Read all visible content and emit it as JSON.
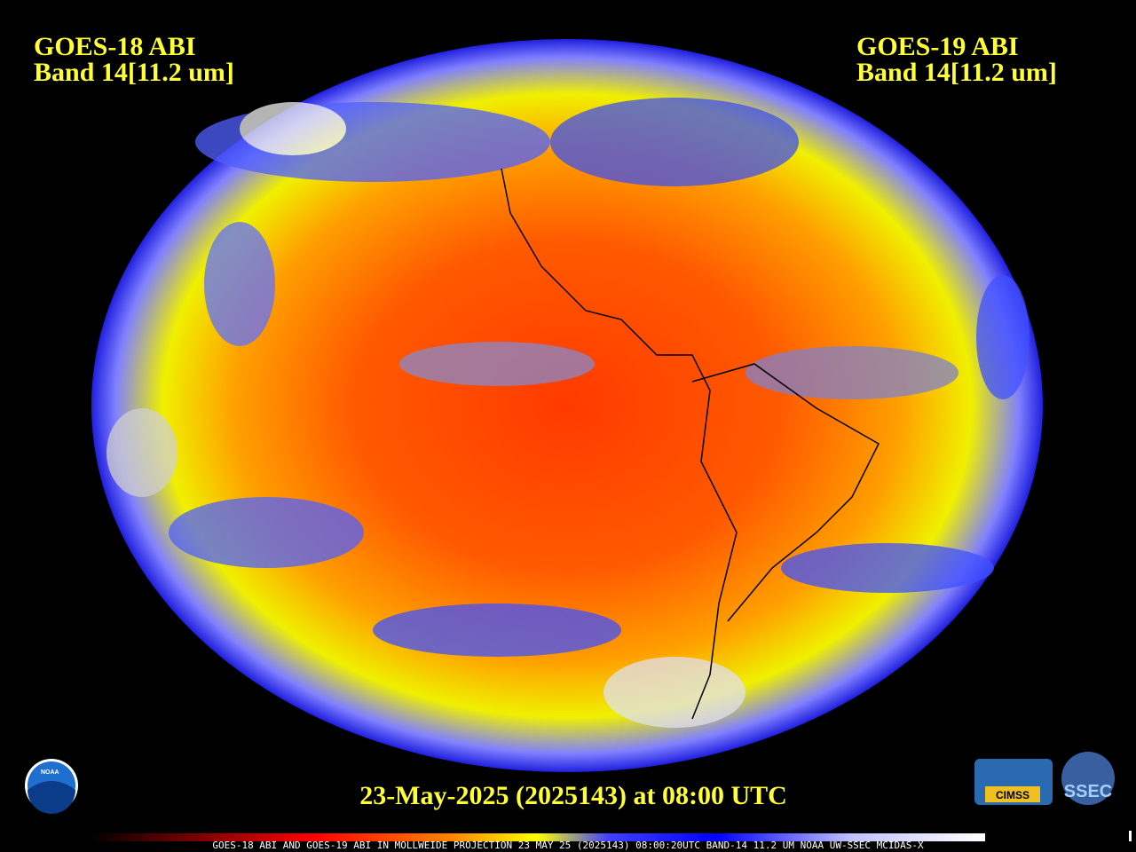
{
  "header": {
    "left": {
      "satellite": "GOES-18 ABI",
      "band": "Band 14[11.2 um]"
    },
    "right": {
      "satellite": "GOES-19 ABI",
      "band": "Band 14[11.2 um]"
    }
  },
  "footer": {
    "date": "23-May-2025 (2025143) at 08:00 UTC",
    "caption": "GOES-18 ABI AND GOES-19 ABI IN MOLLWEIDE PROJECTION 23 MAY 25 (2025143) 08:00:20UTC BAND-14 11.2 UM NOAA UW-SSEC MCIDAS-X"
  },
  "logos": {
    "noaa": "NOAA",
    "cimss": "CIMSS",
    "ssec": "SSEC"
  }
}
